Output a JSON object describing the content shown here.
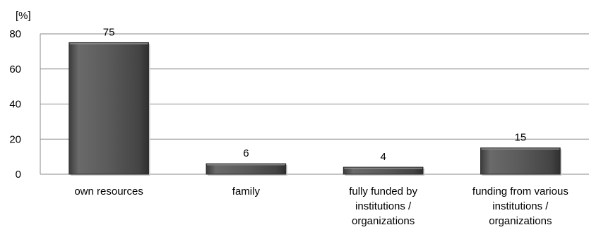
{
  "chart_data": {
    "type": "bar",
    "unit_label": "[%]",
    "categories": [
      [
        "own resources"
      ],
      [
        "family"
      ],
      [
        "fully funded by",
        "institutions /",
        "organizations"
      ],
      [
        "funding from various",
        "institutions /",
        "organizations"
      ]
    ],
    "values": [
      75,
      6,
      4,
      15
    ],
    "data_labels": [
      "75",
      "6",
      "4",
      "15"
    ],
    "ylim": [
      0,
      80
    ],
    "yticks": [
      0,
      20,
      40,
      60,
      80
    ],
    "grid": true,
    "bar_color": "#555555"
  }
}
